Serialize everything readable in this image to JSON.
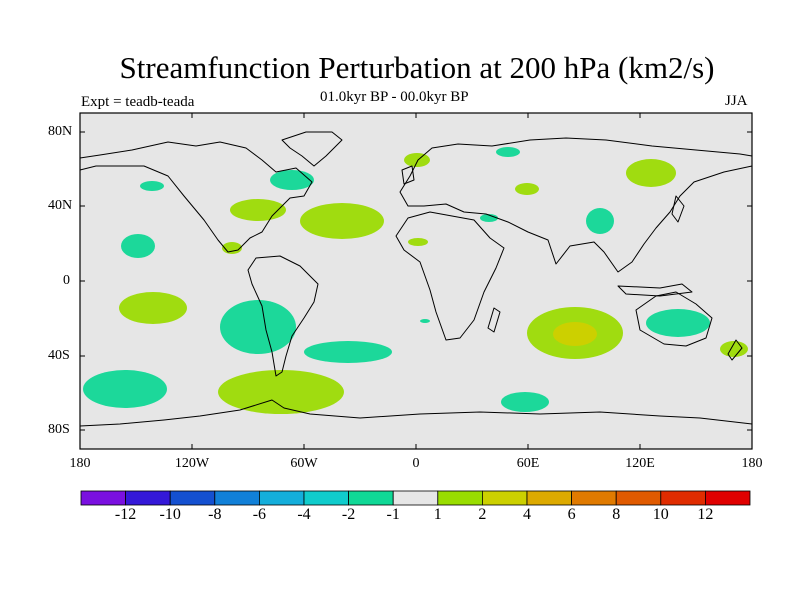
{
  "title": "Streamfunction Perturbation at 200 hPa (km2/s)",
  "subtitle": "01.0kyr BP - 00.0kyr BP",
  "experiment_label": "Expt = teadb-teada",
  "season": "JJA",
  "lat_labels": [
    "80N",
    "40N",
    "0",
    "40S",
    "80S"
  ],
  "lon_labels": [
    "180",
    "120W",
    "60W",
    "0",
    "60E",
    "120E",
    "180"
  ],
  "colorbar": {
    "labels": [
      "-12",
      "-10",
      "-8",
      "-6",
      "-4",
      "-2",
      "-1",
      "1",
      "2",
      "4",
      "6",
      "8",
      "10",
      "12"
    ],
    "colors": [
      "#7a10e0",
      "#3418d8",
      "#1450d0",
      "#1180d8",
      "#14aedb",
      "#10cccc",
      "#10d896",
      "#e6e6e6",
      "#99dd00",
      "#ccd000",
      "#ddaa00",
      "#e07a00",
      "#e05a00",
      "#e02c00",
      "#e00000"
    ]
  },
  "colors": {
    "ocean_bg": "#e6e6e6",
    "neg_weak": "#1cd89a",
    "pos_weak": "#a0dc10",
    "pos_mid": "#ccd000"
  }
}
